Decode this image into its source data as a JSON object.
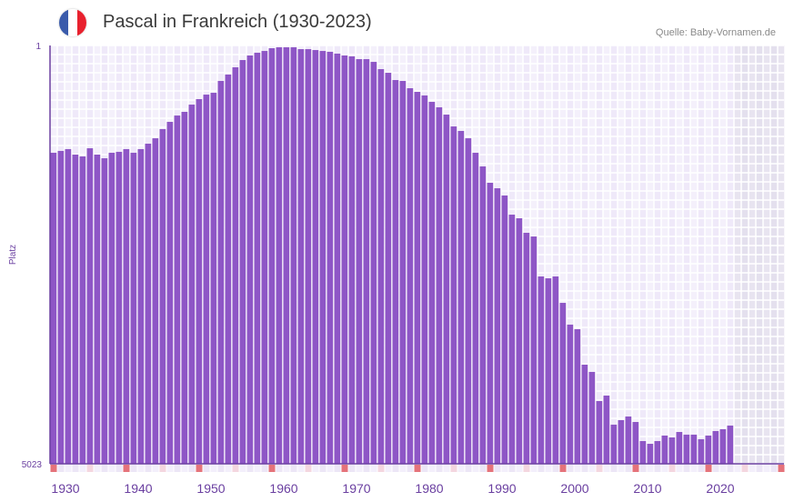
{
  "header": {
    "title": "Pascal in Frankreich (1930-2023)",
    "source": "Quelle: Baby-Vornamen.de",
    "flag_colors": [
      "#3a5bab",
      "#ffffff",
      "#e8212e"
    ]
  },
  "colors": {
    "bar": "#8e56c6",
    "axis": "#6a3fa0",
    "marker_decade": "#e5727a",
    "marker_half": "#f4d6df"
  },
  "chart_data": {
    "type": "bar",
    "title": "Pascal in Frankreich (1930-2023)",
    "xlabel": "",
    "ylabel": "Platz",
    "y_reversed": true,
    "ylim": [
      5023,
      1
    ],
    "y_ticks": [
      "1",
      "5023"
    ],
    "x_range": [
      1930,
      2030
    ],
    "x_ticks": [
      "1930",
      "1940",
      "1950",
      "1960",
      "1970",
      "1980",
      "1990",
      "2000",
      "2010",
      "2020"
    ],
    "categories": [
      1930,
      1931,
      1932,
      1933,
      1934,
      1935,
      1936,
      1937,
      1938,
      1939,
      1940,
      1941,
      1942,
      1943,
      1944,
      1945,
      1946,
      1947,
      1948,
      1949,
      1950,
      1951,
      1952,
      1953,
      1954,
      1955,
      1956,
      1957,
      1958,
      1959,
      1960,
      1961,
      1962,
      1963,
      1964,
      1965,
      1966,
      1967,
      1968,
      1969,
      1970,
      1971,
      1972,
      1973,
      1974,
      1975,
      1976,
      1977,
      1978,
      1979,
      1980,
      1981,
      1982,
      1983,
      1984,
      1985,
      1986,
      1987,
      1988,
      1989,
      1990,
      1991,
      1992,
      1993,
      1994,
      1995,
      1996,
      1997,
      1998,
      1999,
      2000,
      2001,
      2002,
      2003,
      2004,
      2005,
      2006,
      2007,
      2008,
      2009,
      2010,
      2011,
      2012,
      2013,
      2014,
      2015,
      2016,
      2017,
      2018,
      2019,
      2020,
      2021,
      2022,
      2023
    ],
    "values": [
      1289,
      1267,
      1245,
      1311,
      1333,
      1235,
      1311,
      1355,
      1289,
      1278,
      1245,
      1289,
      1245,
      1180,
      1115,
      1005,
      918,
      842,
      798,
      711,
      645,
      591,
      569,
      427,
      350,
      263,
      176,
      121,
      88,
      67,
      34,
      23,
      23,
      23,
      45,
      45,
      56,
      67,
      77,
      99,
      121,
      132,
      165,
      165,
      198,
      285,
      329,
      416,
      427,
      514,
      558,
      601,
      678,
      743,
      831,
      973,
      1027,
      1115,
      1289,
      1453,
      1649,
      1715,
      1802,
      2032,
      2075,
      2250,
      2294,
      2774,
      2796,
      2774,
      3091,
      3352,
      3407,
      3833,
      3920,
      4269,
      4204,
      4553,
      4499,
      4455,
      4521,
      4750,
      4783,
      4750,
      4684,
      4706,
      4641,
      4673,
      4673,
      4728,
      4684,
      4630,
      4608,
      4564
    ]
  }
}
